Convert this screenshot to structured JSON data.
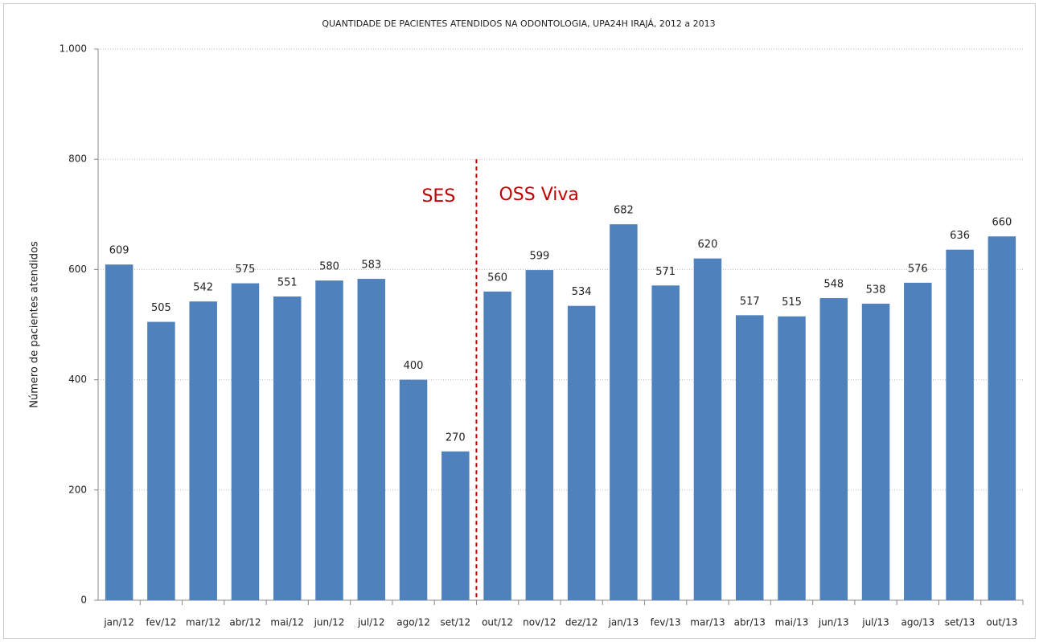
{
  "chart_data": {
    "type": "bar",
    "title": "QUANTIDADE DE PACIENTES ATENDIDOS NA ODONTOLOGIA, UPA24H IRAJÁ, 2012 a 2013",
    "y_label": "Número de pacientes atendidos",
    "categories": [
      "jan/12",
      "fev/12",
      "mar/12",
      "abr/12",
      "mai/12",
      "jun/12",
      "jul/12",
      "ago/12",
      "set/12",
      "out/12",
      "nov/12",
      "dez/12",
      "jan/13",
      "fev/13",
      "mar/13",
      "abr/13",
      "mai/13",
      "jun/13",
      "jul/13",
      "ago/13",
      "set/13",
      "out/13"
    ],
    "values": [
      609,
      505,
      542,
      575,
      551,
      580,
      583,
      400,
      270,
      560,
      599,
      534,
      682,
      571,
      620,
      517,
      515,
      548,
      538,
      576,
      636,
      660
    ],
    "color": "#4f81bd",
    "ylim": [
      0,
      1000
    ],
    "yticks": [
      0,
      200,
      400,
      600,
      800,
      {
        "value": 1000,
        "label": "1.000"
      }
    ],
    "grid": true,
    "annotations": [
      {
        "text": "SES",
        "color": "#c00000"
      },
      {
        "text": "OSS Viva",
        "color": "#c00000"
      }
    ]
  }
}
